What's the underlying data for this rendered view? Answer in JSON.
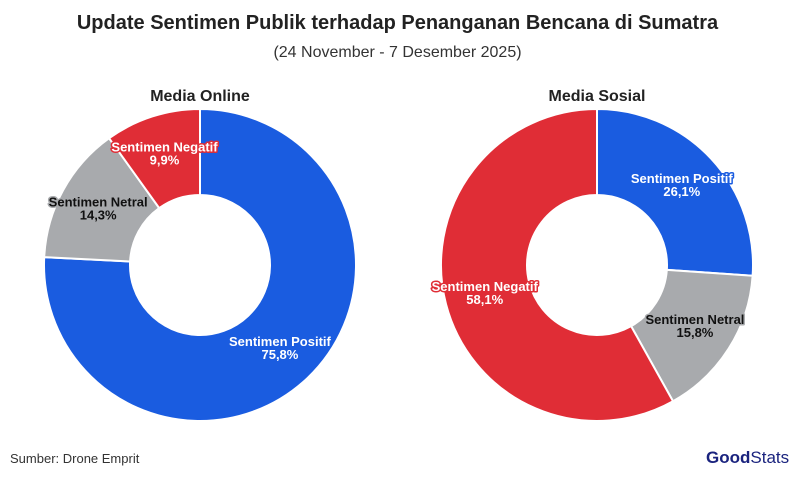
{
  "title": "Update Sentimen Publik terhadap Penanganan Bencana di Sumatra",
  "subtitle": "(24 November - 7 Desember 2025)",
  "source": "Sumber: Drone Emprit",
  "logo": {
    "bold": "Good",
    "light": "Stats"
  },
  "colors": {
    "Sentimen Positif": "#1a5ce0",
    "Sentimen Netral": "#a8aaad",
    "Sentimen Negatif": "#e02d36"
  },
  "chart_data": [
    {
      "type": "pie",
      "title": "Media Online",
      "categories": [
        "Sentimen Positif",
        "Sentimen Netral",
        "Sentimen Negatif"
      ],
      "values": [
        75.8,
        14.3,
        9.9
      ],
      "labels": [
        "75,8%",
        "14,3%",
        "9,9%"
      ]
    },
    {
      "type": "pie",
      "title": "Media Sosial",
      "categories": [
        "Sentimen Positif",
        "Sentimen Netral",
        "Sentimen Negatif"
      ],
      "values": [
        26.1,
        15.8,
        58.1
      ],
      "labels": [
        "26,1%",
        "15,8%",
        "58,1%"
      ]
    }
  ]
}
